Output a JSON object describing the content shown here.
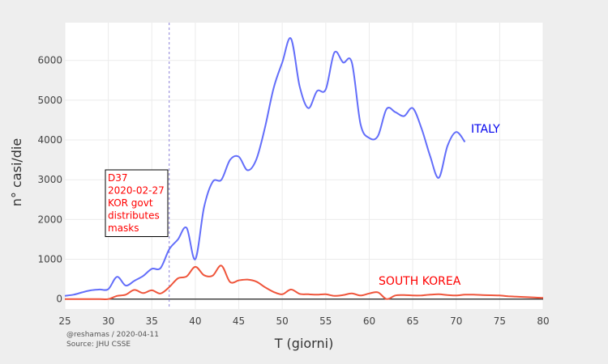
{
  "chart_data": {
    "type": "line",
    "xlabel": "T (giorni)",
    "ylabel": "n° casi/die",
    "xlim": [
      25,
      80
    ],
    "ylim": [
      -250,
      6950
    ],
    "xticks": [
      25,
      30,
      35,
      40,
      45,
      50,
      55,
      60,
      65,
      70,
      75,
      80
    ],
    "yticks": [
      0,
      1000,
      2000,
      3000,
      4000,
      5000,
      6000
    ],
    "grid": true,
    "legend": "none (series labeled inline)",
    "colors": {
      "italy": "#636efa",
      "korea": "#ef553b",
      "zero_line": "#444444",
      "vline": "#8a7fd8",
      "plot_bg": "#ffffff",
      "page_bg": "#eeeeee"
    },
    "series": [
      {
        "name": "ITALY",
        "label_color": "#0000ee",
        "x": [
          25,
          26,
          27,
          28,
          29,
          30,
          31,
          32,
          33,
          34,
          35,
          36,
          37,
          38,
          39,
          40,
          41,
          42,
          43,
          44,
          45,
          46,
          47,
          48,
          49,
          50,
          51,
          52,
          53,
          54,
          55,
          56,
          57,
          58,
          59,
          60,
          61,
          62,
          63,
          64,
          65,
          66,
          67,
          68,
          69,
          70,
          71
        ],
        "values": [
          80,
          110,
          170,
          220,
          240,
          250,
          560,
          340,
          460,
          580,
          760,
          780,
          1250,
          1500,
          1790,
          1000,
          2300,
          2950,
          3000,
          3500,
          3580,
          3240,
          3500,
          4300,
          5300,
          5950,
          6550,
          5350,
          4800,
          5230,
          5270,
          6200,
          5950,
          5950,
          4400,
          4050,
          4100,
          4780,
          4700,
          4600,
          4800,
          4300,
          3600,
          3050,
          3850,
          4200,
          3950
        ]
      },
      {
        "name": "SOUTH KOREA",
        "label_color": "#ff0000",
        "x": [
          25,
          26,
          27,
          28,
          29,
          30,
          31,
          32,
          33,
          34,
          35,
          36,
          37,
          38,
          39,
          40,
          41,
          42,
          43,
          44,
          45,
          46,
          47,
          48,
          49,
          50,
          51,
          52,
          53,
          54,
          55,
          56,
          57,
          58,
          59,
          60,
          61,
          62,
          63,
          64,
          65,
          66,
          67,
          68,
          69,
          70,
          71,
          72,
          73,
          74,
          75,
          76,
          77,
          78,
          79,
          80
        ],
        "values": [
          0,
          0,
          0,
          0,
          0,
          0,
          80,
          110,
          230,
          150,
          220,
          140,
          300,
          520,
          570,
          810,
          600,
          590,
          840,
          430,
          470,
          490,
          440,
          300,
          180,
          120,
          240,
          130,
          120,
          110,
          120,
          80,
          100,
          140,
          90,
          140,
          170,
          0,
          90,
          100,
          90,
          90,
          110,
          120,
          100,
          90,
          110,
          110,
          100,
          95,
          90,
          70,
          60,
          50,
          40,
          30
        ]
      }
    ],
    "annotations": [
      {
        "x": 37,
        "lines": [
          "D37",
          "2020-02-27",
          "KOR govt",
          "distributes",
          "masks"
        ]
      }
    ],
    "vline_x": 37,
    "footnote": [
      "@reshamas / 2020-04-11",
      "Source: JHU CSSE"
    ]
  }
}
